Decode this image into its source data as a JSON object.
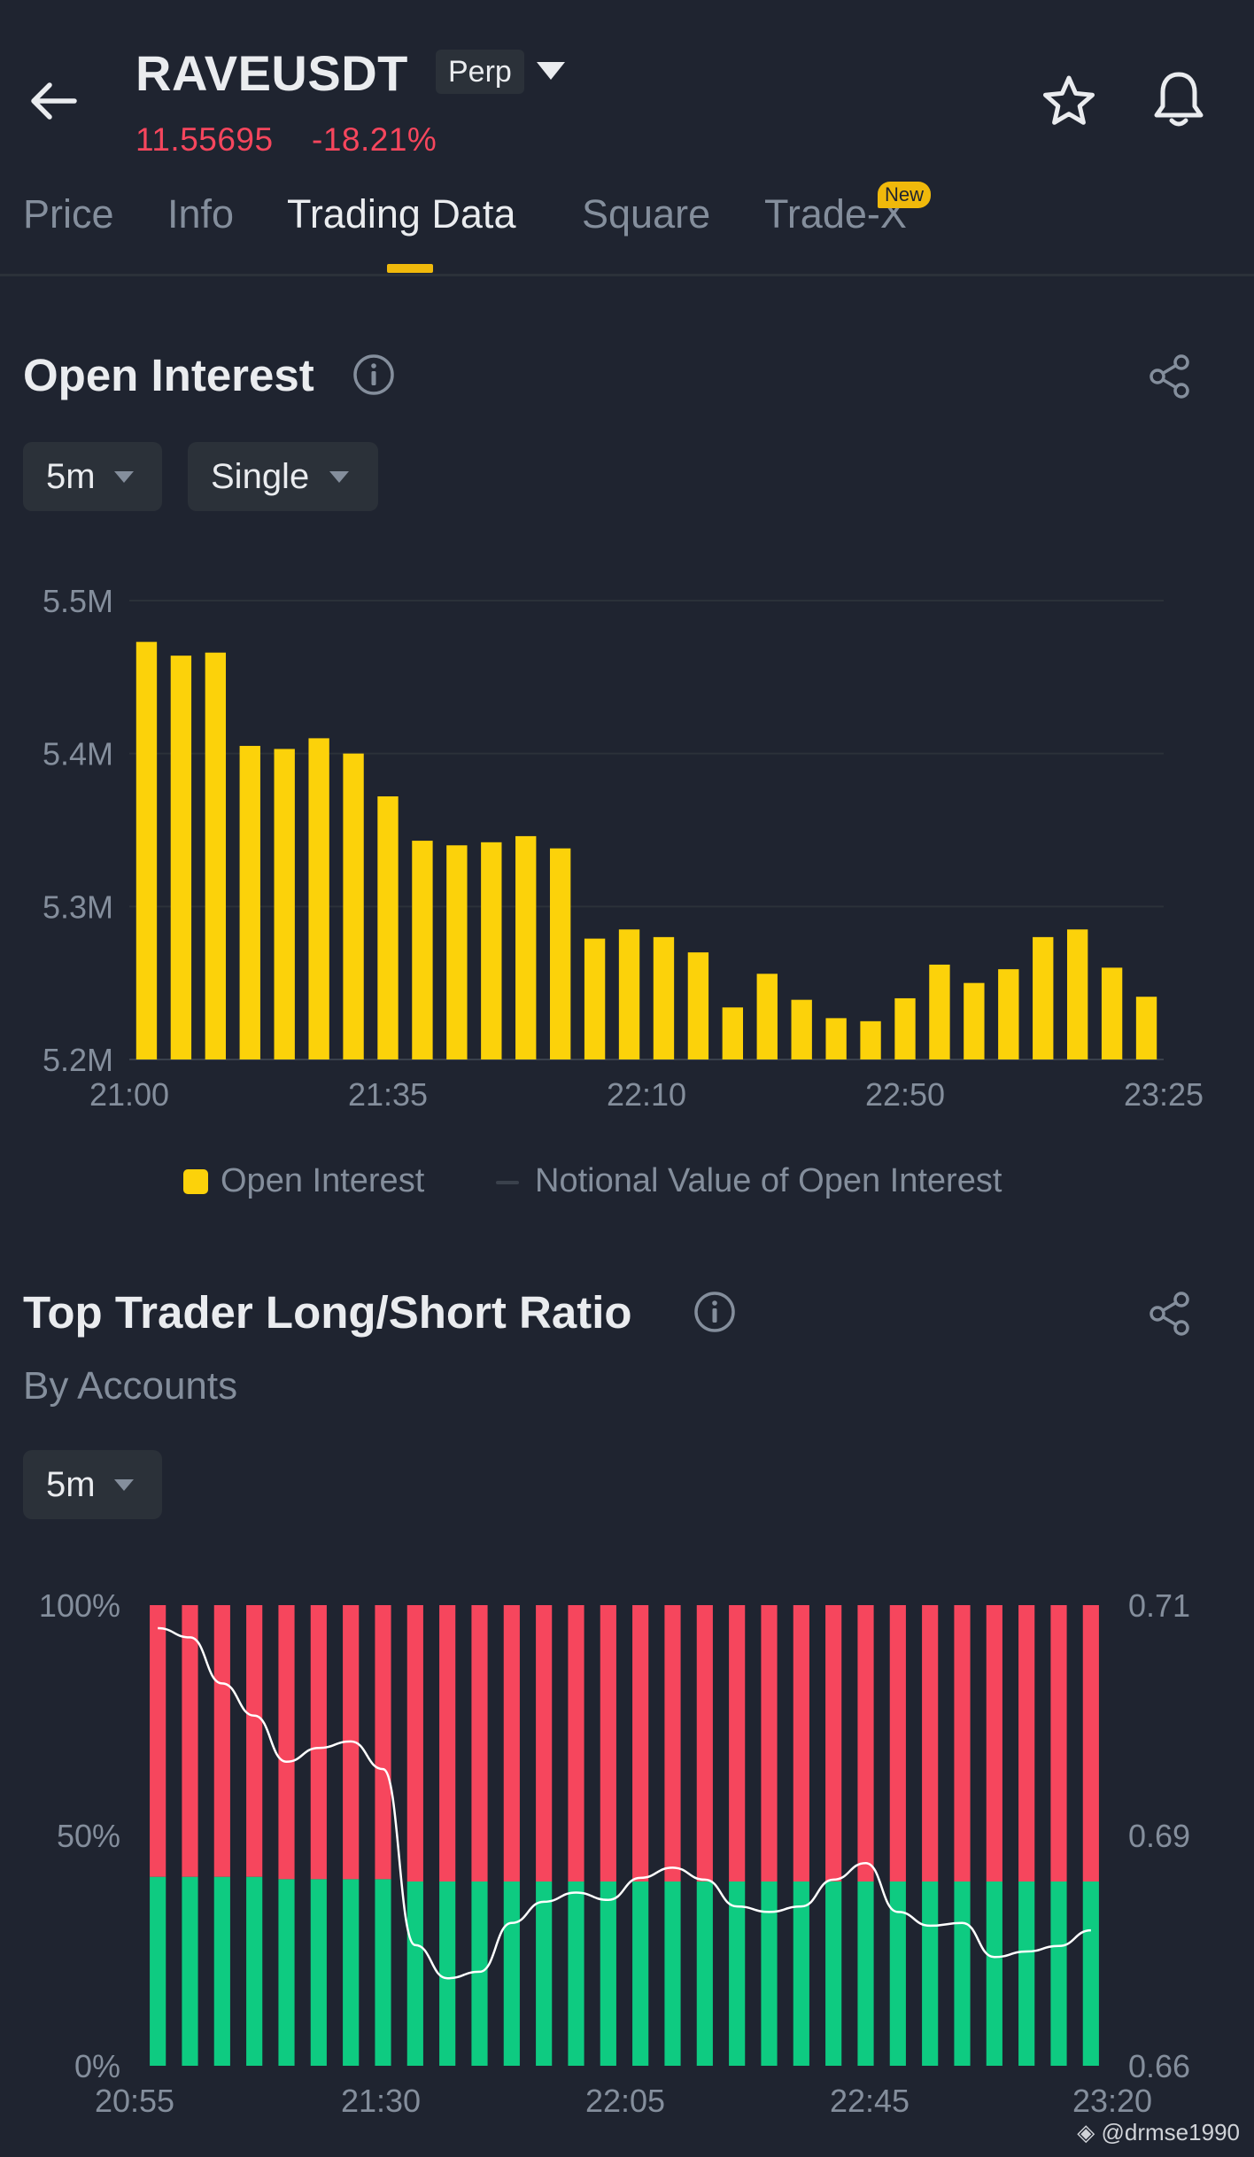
{
  "header": {
    "symbol": "RAVEUSDT",
    "contract_type": "Perp",
    "last_price": "11.55695",
    "change_pct": "-18.21%"
  },
  "tabs": [
    {
      "label": "Price",
      "active": false
    },
    {
      "label": "Info",
      "active": false
    },
    {
      "label": "Trading Data",
      "active": true
    },
    {
      "label": "Square",
      "active": false
    },
    {
      "label": "Trade-X",
      "active": false,
      "badge": "New"
    }
  ],
  "open_interest": {
    "title": "Open Interest",
    "interval": "5m",
    "mode": "Single",
    "legend": [
      "Open Interest",
      "Notional Value of Open Interest"
    ]
  },
  "long_short": {
    "title": "Top Trader Long/Short Ratio",
    "subtitle": "By Accounts",
    "interval": "5m"
  },
  "watermark": "@drmse1990",
  "colors": {
    "background": "#1f2430",
    "accent": "#f0b90b",
    "oi_bar": "#fcd20a",
    "long": "#0ecb81",
    "short": "#f6465d",
    "grid": "#2b3139"
  },
  "chart_data": [
    {
      "type": "bar",
      "title": "Open Interest",
      "series": [
        {
          "name": "Open Interest",
          "values": [
            5.473,
            5.464,
            5.466,
            5.405,
            5.403,
            5.41,
            5.4,
            5.372,
            5.343,
            5.34,
            5.342,
            5.346,
            5.338,
            5.279,
            5.285,
            5.28,
            5.27,
            5.234,
            5.256,
            5.239,
            5.227,
            5.225,
            5.24,
            5.262,
            5.25,
            5.259,
            5.28,
            5.285,
            5.26,
            5.241
          ]
        }
      ],
      "y_unit": "M",
      "ylim": [
        5.2,
        5.5
      ],
      "yticks": [
        "5.2M",
        "5.3M",
        "5.4M",
        "5.5M"
      ],
      "xticks": [
        "21:00",
        "21:35",
        "22:10",
        "22:50",
        "23:25"
      ],
      "grid": true,
      "legend_position": "bottom"
    },
    {
      "type": "bar",
      "stacked": true,
      "title": "Top Trader Long/Short Ratio",
      "long_pct": [
        41,
        41,
        41,
        41,
        40.5,
        40.5,
        40.5,
        40.5,
        40,
        40,
        40,
        40,
        40,
        40,
        40,
        40,
        40,
        40,
        40,
        40,
        40,
        40,
        40,
        40,
        40,
        40,
        40,
        40,
        40,
        40
      ],
      "ratio": [
        0.7075,
        0.7065,
        0.7015,
        0.698,
        0.693,
        0.6945,
        0.6952,
        0.6922,
        0.6731,
        0.6695,
        0.6702,
        0.6755,
        0.6778,
        0.6788,
        0.678,
        0.6804,
        0.6815,
        0.6802,
        0.6773,
        0.6767,
        0.6773,
        0.6802,
        0.682,
        0.6767,
        0.6752,
        0.6755,
        0.6718,
        0.6724,
        0.673,
        0.6747
      ],
      "y_left_ticks": [
        "0%",
        "50%",
        "100%"
      ],
      "y_right_ticks": [
        "0.66",
        "0.69",
        "0.71"
      ],
      "y_right_range": [
        0.66,
        0.71
      ],
      "xticks": [
        "20:55",
        "21:30",
        "22:05",
        "22:45",
        "23:20"
      ]
    }
  ]
}
